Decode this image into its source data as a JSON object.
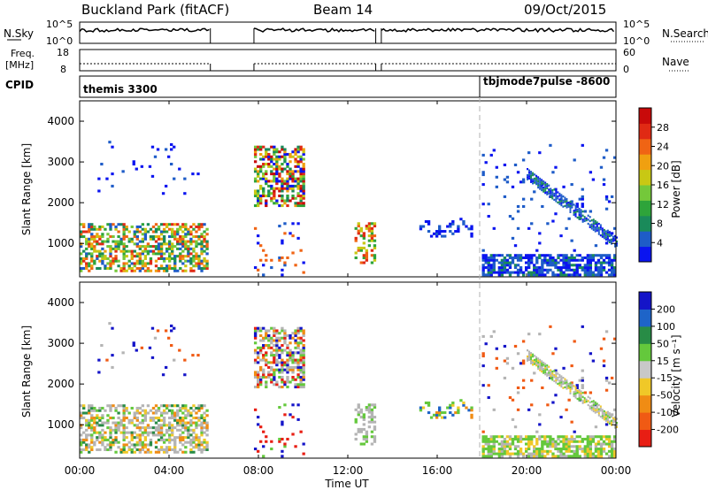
{
  "header": {
    "station": "Buckland Park (fitACF)",
    "beam": "Beam 14",
    "date": "09/Oct/2015"
  },
  "sky_panel": {
    "left_label": "N.Sky",
    "right_label": "N.Search",
    "left_ticks": [
      "10^5",
      "10^0"
    ],
    "right_ticks": [
      "10^5",
      "10^0"
    ]
  },
  "freq_panel": {
    "left_label_line1": "Freq.",
    "left_label_line2": "[MHz]",
    "right_label": "Nave",
    "left_ticks": [
      "18",
      "8"
    ],
    "right_ticks": [
      "60",
      "0"
    ]
  },
  "cpid": {
    "label": "CPID",
    "segments": [
      {
        "start_hour": 0,
        "text": "themis 3300"
      },
      {
        "start_hour": 18.0,
        "text": "tbjmode7pulse -8600"
      }
    ]
  },
  "x_axis": {
    "label": "Time UT",
    "range_hours": [
      0,
      24
    ],
    "ticks": [
      "00:00",
      "04:00",
      "08:00",
      "12:00",
      "16:00",
      "20:00",
      "00:00"
    ]
  },
  "chart_data": [
    {
      "type": "heatmap",
      "name": "power",
      "xlabel": "Time UT",
      "ylabel": "Slant Range [km]",
      "xlim_hours": [
        0,
        24
      ],
      "ylim": [
        180,
        4500
      ],
      "yticks": [
        "1000",
        "2000",
        "3000",
        "4000"
      ],
      "colorbar": {
        "label": "Power [dB]",
        "ticks": [
          "4",
          "8",
          "12",
          "16",
          "20",
          "24",
          "28"
        ],
        "range": [
          0,
          30
        ],
        "colors": [
          "#0a14f0",
          "#1e5cc8",
          "#1a8a5a",
          "#2ea43a",
          "#74c83a",
          "#c8c814",
          "#f0a010",
          "#f06414",
          "#e02a14",
          "#c80a0a"
        ]
      },
      "data_regions_description": "Echo regions: 00:00-05:45 bands at 300-1400 km; 07:45-10:00 at 1900-3400 km; 12:15-13:15 diagonal 500-1500 km; 15:00-17:30 around 1200-1500 km; 18:00-24:00 near-range plus descending 2800-1000 km band"
    },
    {
      "type": "heatmap",
      "name": "velocity",
      "xlabel": "Time UT",
      "ylabel": "Slant Range [km]",
      "xlim_hours": [
        0,
        24
      ],
      "ylim": [
        180,
        4500
      ],
      "yticks": [
        "1000",
        "2000",
        "3000",
        "4000"
      ],
      "colorbar": {
        "label": "Velocity [m s⁻¹]",
        "ticks": [
          "200",
          "100",
          "50",
          "15",
          "-15",
          "-50",
          "-100",
          "-200"
        ],
        "range": [
          -250,
          250
        ],
        "colors": [
          "#1414c8",
          "#1e64c8",
          "#288c46",
          "#64c83c",
          "#c8c8c8",
          "#f0c828",
          "#f08c14",
          "#f05a14",
          "#e81e14"
        ]
      }
    }
  ],
  "colors": {
    "ground_scatter": "#b4b4b4",
    "missing": "#ffffff"
  }
}
